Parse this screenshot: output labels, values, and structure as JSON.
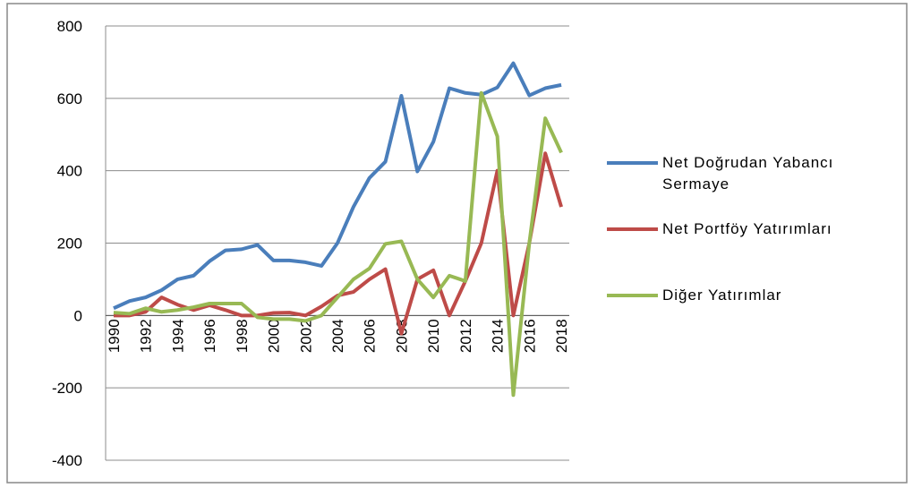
{
  "chart_data": {
    "type": "line",
    "categories": [
      "1990",
      null,
      "1992",
      null,
      "1994",
      null,
      "1996",
      null,
      "1998",
      null,
      "2000",
      null,
      "2002",
      null,
      "2004",
      null,
      "2006",
      null,
      "2008",
      null,
      "2010",
      null,
      "2012",
      null,
      "2014",
      null,
      "2016",
      null,
      "2018"
    ],
    "series": [
      {
        "name": "Net Doğrudan Yabancı Sermaye",
        "color": "#4a7ebb",
        "values": [
          20,
          40,
          50,
          70,
          100,
          110,
          150,
          180,
          183,
          195,
          152,
          152,
          147,
          137,
          200,
          300,
          380,
          425,
          607,
          398,
          480,
          628,
          615,
          610,
          630,
          697,
          608,
          628,
          637
        ]
      },
      {
        "name": "Net Portföy Yatırımları",
        "color": "#be4b48",
        "values": [
          0,
          0,
          10,
          50,
          30,
          15,
          28,
          15,
          0,
          0,
          7,
          8,
          0,
          25,
          55,
          65,
          100,
          128,
          -50,
          100,
          125,
          0,
          95,
          200,
          400,
          0,
          200,
          448,
          300
        ]
      },
      {
        "name": "Diğer Yatırımlar",
        "color": "#98b954",
        "values": [
          8,
          5,
          20,
          10,
          15,
          23,
          33,
          33,
          33,
          -5,
          -10,
          -10,
          -15,
          0,
          50,
          100,
          130,
          198,
          205,
          100,
          50,
          110,
          95,
          615,
          495,
          -220,
          200,
          545,
          450
        ]
      }
    ],
    "ylim": [
      -400,
      800
    ],
    "yticks": [
      -400,
      -200,
      0,
      200,
      400,
      600,
      800
    ],
    "grid": true,
    "legend": "right"
  }
}
